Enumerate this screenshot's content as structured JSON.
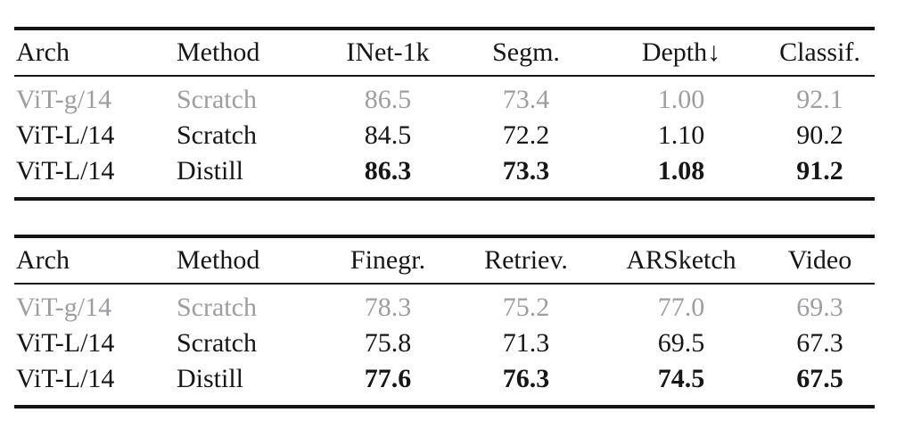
{
  "colors": {
    "text": "#161616",
    "muted_row_text": "#9c9ea1",
    "rule": "#141414",
    "background": "#ffffff"
  },
  "tables": [
    {
      "headers": [
        "Arch",
        "Method",
        "INet-1k",
        "Segm.",
        "Depth↓",
        "Classif."
      ],
      "rows": [
        {
          "style": "muted",
          "cells": [
            "ViT-g/14",
            "Scratch",
            "86.5",
            "73.4",
            "1.00",
            "92.1"
          ]
        },
        {
          "style": "normal",
          "cells": [
            "ViT-L/14",
            "Scratch",
            "84.5",
            "72.2",
            "1.10",
            "90.2"
          ]
        },
        {
          "style": "bold",
          "cells": [
            "ViT-L/14",
            "Distill",
            "86.3",
            "73.3",
            "1.08",
            "91.2"
          ]
        }
      ]
    },
    {
      "headers": [
        "Arch",
        "Method",
        "Finegr.",
        "Retriev.",
        "ARSketch",
        "Video"
      ],
      "rows": [
        {
          "style": "muted",
          "cells": [
            "ViT-g/14",
            "Scratch",
            "78.3",
            "75.2",
            "77.0",
            "69.3"
          ]
        },
        {
          "style": "normal",
          "cells": [
            "ViT-L/14",
            "Scratch",
            "75.8",
            "71.3",
            "69.5",
            "67.3"
          ]
        },
        {
          "style": "bold",
          "cells": [
            "ViT-L/14",
            "Distill",
            "77.6",
            "76.3",
            "74.5",
            "67.5"
          ]
        }
      ]
    }
  ]
}
